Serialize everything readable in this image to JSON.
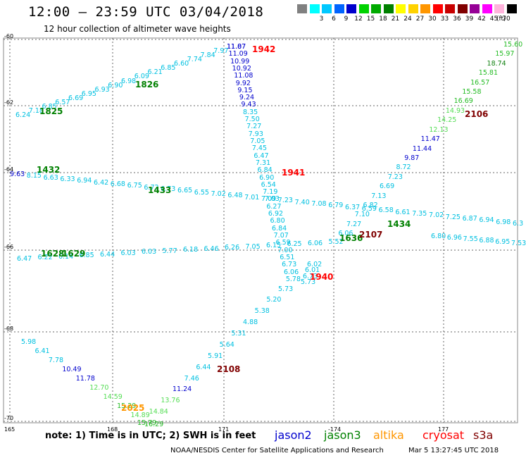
{
  "header": {
    "title": "12:00 — 23:59 UTC 03/04/2018",
    "subtitle": "12 hour collection of altimeter wave heights"
  },
  "legend": {
    "items": [
      {
        "label": "",
        "color": "#808080"
      },
      {
        "label": "3",
        "color": "#00ffff"
      },
      {
        "label": "6",
        "color": "#00c8ff"
      },
      {
        "label": "9",
        "color": "#0064ff"
      },
      {
        "label": "12",
        "color": "#0000cd"
      },
      {
        "label": "15",
        "color": "#00d200"
      },
      {
        "label": "18",
        "color": "#00aa00"
      },
      {
        "label": "21",
        "color": "#008000"
      },
      {
        "label": "24",
        "color": "#ffff00"
      },
      {
        "label": "27",
        "color": "#ffd200"
      },
      {
        "label": "30",
        "color": "#ff9600"
      },
      {
        "label": "33",
        "color": "#ff0000"
      },
      {
        "label": "36",
        "color": "#c80000"
      },
      {
        "label": "39",
        "color": "#800000"
      },
      {
        "label": "42",
        "color": "#960096"
      },
      {
        "label": "45",
        "color": "#ff00ff"
      },
      {
        "label": "70",
        "color": "#ffb4dc"
      },
      {
        "label": "",
        "color": "#000000"
      }
    ],
    "unit": "(ft)"
  },
  "axes": {
    "lat_labels": [
      "-60",
      "-62",
      "-64",
      "-66",
      "-68",
      "-70"
    ],
    "lon_labels": [
      "165",
      "168",
      "171",
      "-174",
      "177"
    ]
  },
  "colors": {
    "jason2": "#0000cd",
    "jason3": "#008000",
    "altika": "#ff9600",
    "cryosat": "#ff0000",
    "s3a": "#800000"
  },
  "tracks": [
    {
      "tag": "1942",
      "tag_color": "#ff0000",
      "values": [
        "11.07",
        "11.09",
        "10.99",
        "10.92",
        "11.08",
        "9.92",
        "9.15",
        "9.24",
        "9.43",
        "8.35",
        "7.50",
        "7.27",
        "7.93",
        "7.05",
        "7.45",
        "6.47",
        "7.31",
        "6.84",
        "6.90",
        "6.54",
        "7.19",
        "7.03",
        "6.27",
        "6.92",
        "6.80",
        "6.84",
        "7.07",
        "6.59",
        "7.00",
        "6.51",
        "6.73",
        "6.06",
        "5.78",
        "5.73",
        "5.20",
        "5.38",
        "4.88",
        "5.31",
        "5.64",
        "5.91",
        "6.44",
        "7.46",
        "11.24",
        "13.76",
        "14.84",
        "15.79"
      ]
    },
    {
      "tag": "1941",
      "tag_color": "#ff0000",
      "values": []
    },
    {
      "tag": "1940",
      "tag_color": "#ff0000",
      "values": [
        "6.02",
        "6.01",
        "6.73",
        "5.73"
      ]
    },
    {
      "tag": "1826",
      "tag_color": "#008000",
      "values": [
        "6.24",
        "7.18",
        "6.85",
        "6.57",
        "6.69",
        "6.95",
        "6.93",
        "6.90",
        "6.98",
        "6.09",
        "6.21",
        "6.85",
        "6.60",
        "7.74",
        "7.84",
        "7.97",
        "11.87"
      ]
    },
    {
      "tag": "1825",
      "tag_color": "#008000",
      "values": []
    },
    {
      "tag": "1432",
      "tag_color": "#008000",
      "values": [
        "9.63",
        "8.15",
        "6.63",
        "6.33",
        "6.94",
        "6.42",
        "6.68",
        "6.75",
        "6.72",
        "6.73",
        "6.65",
        "6.55",
        "7.02",
        "6.48",
        "7.01",
        "7.09",
        "7.23",
        "7.40",
        "7.08",
        "6.79",
        "6.37",
        "6.59",
        "6.58",
        "6.61",
        "7.35",
        "7.02",
        "7.25",
        "6.87",
        "6.94",
        "6.98",
        "6.3"
      ]
    },
    {
      "tag": "1433",
      "tag_color": "#008000",
      "values": []
    },
    {
      "tag": "1434",
      "tag_color": "#008000",
      "values": [
        "6.80",
        "6.96",
        "7.55",
        "6.88",
        "6.95",
        "7.53"
      ]
    },
    {
      "tag": "1636",
      "tag_color": "#008000",
      "values": []
    },
    {
      "tag": "2107",
      "tag_color": "#800000",
      "values": []
    },
    {
      "tag": "1628",
      "tag_color": "#008000",
      "values": [
        "6.47",
        "6.22",
        "6.14",
        "6.85",
        "6.44",
        "6.03",
        "6.03",
        "5.77",
        "6.18",
        "6.46",
        "6.26",
        "7.05",
        "6.15",
        "6.25",
        "6.06",
        "5.52",
        "6.06",
        "7.27",
        "7.10",
        "6.82",
        "7.13",
        "6.69",
        "7.23",
        "8.72",
        "9.87",
        "11.44",
        "11.47",
        "12.13",
        "14.25",
        "14.93",
        "16.69",
        "15.58",
        "16.57",
        "15.81",
        "18.74",
        "15.97",
        "15.60"
      ]
    },
    {
      "tag": "1629",
      "tag_color": "#008000",
      "values": []
    },
    {
      "tag": "2106",
      "tag_color": "#800000",
      "values": []
    },
    {
      "tag": "2108",
      "tag_color": "#800000",
      "values": [
        "5.98",
        "6.41",
        "7.78",
        "10.49",
        "11.78",
        "12.70",
        "14.59",
        "15.29",
        "14.89",
        "16.29"
      ]
    },
    {
      "tag": "2025",
      "tag_color": "#ff9600",
      "values": []
    }
  ],
  "note": "note: 1) Time is in UTC; 2) SWH is in feet",
  "satellites": [
    {
      "name": "jason2",
      "color": "#0000cd"
    },
    {
      "name": "jason3",
      "color": "#008000"
    },
    {
      "name": "altika",
      "color": "#ff9600"
    },
    {
      "name": "cryosat",
      "color": "#ff0000"
    },
    {
      "name": "s3a",
      "color": "#800000"
    }
  ],
  "footer": "NOAA/NESDIS Center for Satellite Applications and Research",
  "timestamp": "Mar  5 13:27:45 UTC 2018"
}
